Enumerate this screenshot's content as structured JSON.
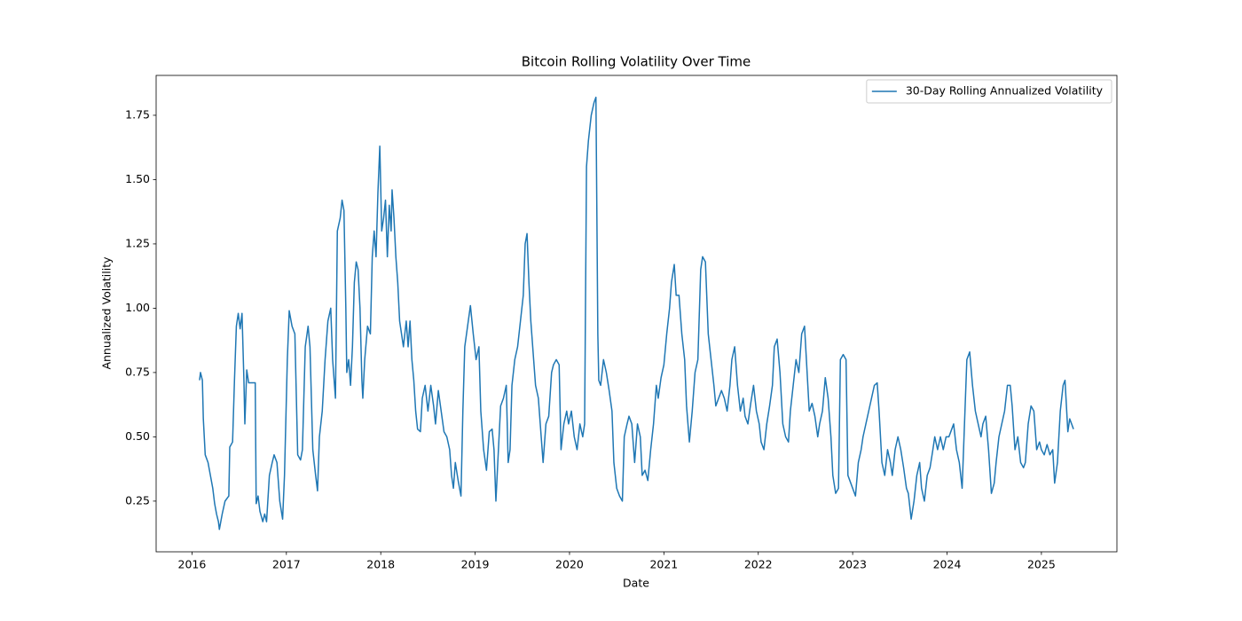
{
  "chart_data": {
    "type": "line",
    "title": "Bitcoin Rolling Volatility Over Time",
    "xlabel": "Date",
    "ylabel": "Annualized Volatility",
    "legend": "upper right",
    "grid": false,
    "xlim": [
      2015.62,
      2025.8
    ],
    "xticks": [
      2016,
      2017,
      2018,
      2019,
      2020,
      2021,
      2022,
      2023,
      2024,
      2025
    ],
    "ylim": [
      0.053,
      1.905
    ],
    "yticks": [
      0.25,
      {
        "value": 0.5,
        "label": "0.50"
      },
      0.75,
      {
        "value": 1,
        "label": "1.00"
      },
      1.25,
      {
        "value": 1.5,
        "label": "1.50"
      },
      1.75
    ],
    "x": [
      2016.08,
      2016.09,
      2016.11,
      2016.12,
      2016.14,
      2016.17,
      2016.19,
      2016.22,
      2016.24,
      2016.26,
      2016.28,
      2016.29,
      2016.32,
      2016.35,
      2016.39,
      2016.4,
      2016.43,
      2016.45,
      2016.47,
      2016.49,
      2016.51,
      2016.53,
      2016.55,
      2016.56,
      2016.58,
      2016.6,
      2016.67,
      2016.68,
      2016.7,
      2016.72,
      2016.75,
      2016.77,
      2016.79,
      2016.82,
      2016.85,
      2016.87,
      2016.9,
      2016.93,
      2016.96,
      2016.98,
      2017.01,
      2017.03,
      2017.06,
      2017.09,
      2017.12,
      2017.15,
      2017.17,
      2017.2,
      2017.23,
      2017.25,
      2017.28,
      2017.31,
      2017.33,
      2017.35,
      2017.38,
      2017.41,
      2017.44,
      2017.47,
      2017.49,
      2017.52,
      2017.54,
      2017.57,
      2017.59,
      2017.61,
      2017.63,
      2017.64,
      2017.66,
      2017.68,
      2017.7,
      2017.72,
      2017.74,
      2017.76,
      2017.78,
      2017.8,
      2017.81,
      2017.83,
      2017.86,
      2017.89,
      2017.91,
      2017.93,
      2017.95,
      2017.97,
      2017.99,
      2018.01,
      2018.03,
      2018.05,
      2018.07,
      2018.09,
      2018.11,
      2018.12,
      2018.14,
      2018.16,
      2018.18,
      2018.2,
      2018.22,
      2018.24,
      2018.27,
      2018.29,
      2018.31,
      2018.33,
      2018.35,
      2018.37,
      2018.39,
      2018.42,
      2018.44,
      2018.47,
      2018.5,
      2018.53,
      2018.56,
      2018.58,
      2018.61,
      2018.64,
      2018.67,
      2018.7,
      2018.73,
      2018.75,
      2018.77,
      2018.79,
      2018.82,
      2018.85,
      2018.87,
      2018.89,
      2018.92,
      2018.95,
      2018.98,
      2019.01,
      2019.04,
      2019.06,
      2019.09,
      2019.12,
      2019.15,
      2019.18,
      2019.2,
      2019.22,
      2019.24,
      2019.27,
      2019.3,
      2019.33,
      2019.35,
      2019.37,
      2019.39,
      2019.42,
      2019.45,
      2019.48,
      2019.51,
      2019.53,
      2019.55,
      2019.57,
      2019.59,
      2019.62,
      2019.64,
      2019.67,
      2019.69,
      2019.72,
      2019.75,
      2019.78,
      2019.81,
      2019.83,
      2019.86,
      2019.89,
      2019.91,
      2019.94,
      2019.97,
      2019.99,
      2020.02,
      2020.05,
      2020.08,
      2020.11,
      2020.14,
      2020.16,
      2020.18,
      2020.2,
      2020.23,
      2020.26,
      2020.28,
      2020.3,
      2020.31,
      2020.33,
      2020.36,
      2020.39,
      2020.42,
      2020.45,
      2020.47,
      2020.5,
      2020.53,
      2020.56,
      2020.58,
      2020.61,
      2020.63,
      2020.66,
      2020.69,
      2020.72,
      2020.75,
      2020.77,
      2020.8,
      2020.83,
      2020.86,
      2020.89,
      2020.92,
      2020.94,
      2020.97,
      2021.0,
      2021.03,
      2021.06,
      2021.08,
      2021.11,
      2021.13,
      2021.16,
      2021.19,
      2021.22,
      2021.24,
      2021.27,
      2021.3,
      2021.33,
      2021.36,
      2021.39,
      2021.41,
      2021.44,
      2021.47,
      2021.5,
      2021.53,
      2021.55,
      2021.58,
      2021.61,
      2021.64,
      2021.67,
      2021.7,
      2021.72,
      2021.75,
      2021.78,
      2021.81,
      2021.84,
      2021.86,
      2021.89,
      2021.92,
      2021.95,
      2021.98,
      2022.01,
      2022.03,
      2022.06,
      2022.09,
      2022.12,
      2022.15,
      2022.17,
      2022.2,
      2022.23,
      2022.26,
      2022.29,
      2022.32,
      2022.34,
      2022.37,
      2022.4,
      2022.43,
      2022.46,
      2022.49,
      2022.51,
      2022.54,
      2022.57,
      2022.6,
      2022.63,
      2022.65,
      2022.68,
      2022.71,
      2022.74,
      2022.77,
      2022.79,
      2022.82,
      2022.85,
      2022.87,
      2022.9,
      2022.93,
      2022.95,
      2022.97,
      2023.0,
      2023.03,
      2023.06,
      2023.09,
      2023.11,
      2023.14,
      2023.17,
      2023.2,
      2023.23,
      2023.26,
      2023.28,
      2023.31,
      2023.34,
      2023.37,
      2023.4,
      2023.42,
      2023.45,
      2023.48,
      2023.51,
      2023.54,
      2023.57,
      2023.59,
      2023.62,
      2023.65,
      2023.68,
      2023.71,
      2023.73,
      2023.76,
      2023.79,
      2023.82,
      2023.85,
      2023.87,
      2023.9,
      2023.93,
      2023.96,
      2023.99,
      2024.02,
      2024.05,
      2024.07,
      2024.1,
      2024.13,
      2024.16,
      2024.19,
      2024.21,
      2024.24,
      2024.27,
      2024.3,
      2024.33,
      2024.36,
      2024.38,
      2024.41,
      2024.44,
      2024.47,
      2024.5,
      2024.52,
      2024.55,
      2024.58,
      2024.61,
      2024.64,
      2024.67,
      2024.69,
      2024.72,
      2024.75,
      2024.78,
      2024.81,
      2024.83,
      2024.86,
      2024.89,
      2024.92,
      2024.95,
      2024.98,
      2025.0,
      2025.03,
      2025.06,
      2025.09,
      2025.12,
      2025.14,
      2025.17,
      2025.2,
      2025.23,
      2025.25,
      2025.28,
      2025.3,
      2025.32,
      2025.34
    ],
    "series": [
      {
        "name": "30-Day Rolling Annualized Volatility",
        "color": "#1f77b4",
        "values": [
          0.72,
          0.75,
          0.72,
          0.57,
          0.43,
          0.4,
          0.36,
          0.3,
          0.24,
          0.2,
          0.17,
          0.14,
          0.2,
          0.25,
          0.27,
          0.46,
          0.48,
          0.72,
          0.93,
          0.98,
          0.92,
          0.98,
          0.72,
          0.55,
          0.76,
          0.71,
          0.71,
          0.24,
          0.27,
          0.21,
          0.17,
          0.2,
          0.17,
          0.35,
          0.4,
          0.43,
          0.4,
          0.25,
          0.18,
          0.35,
          0.8,
          0.99,
          0.93,
          0.9,
          0.43,
          0.41,
          0.45,
          0.85,
          0.93,
          0.85,
          0.45,
          0.35,
          0.29,
          0.5,
          0.6,
          0.8,
          0.95,
          1.0,
          0.8,
          0.65,
          1.3,
          1.35,
          1.42,
          1.38,
          1.0,
          0.75,
          0.8,
          0.7,
          0.85,
          1.1,
          1.18,
          1.15,
          1.0,
          0.72,
          0.65,
          0.8,
          0.93,
          0.9,
          1.2,
          1.3,
          1.2,
          1.45,
          1.63,
          1.3,
          1.35,
          1.42,
          1.2,
          1.4,
          1.3,
          1.46,
          1.35,
          1.2,
          1.1,
          0.95,
          0.9,
          0.85,
          0.95,
          0.85,
          0.95,
          0.8,
          0.72,
          0.6,
          0.53,
          0.52,
          0.65,
          0.7,
          0.6,
          0.7,
          0.62,
          0.55,
          0.68,
          0.6,
          0.52,
          0.5,
          0.45,
          0.35,
          0.3,
          0.4,
          0.33,
          0.27,
          0.6,
          0.85,
          0.93,
          1.01,
          0.9,
          0.8,
          0.85,
          0.6,
          0.45,
          0.37,
          0.52,
          0.53,
          0.45,
          0.25,
          0.4,
          0.62,
          0.65,
          0.7,
          0.4,
          0.45,
          0.7,
          0.8,
          0.85,
          0.95,
          1.05,
          1.25,
          1.29,
          1.1,
          0.95,
          0.8,
          0.7,
          0.65,
          0.55,
          0.4,
          0.55,
          0.58,
          0.75,
          0.78,
          0.8,
          0.78,
          0.45,
          0.55,
          0.6,
          0.55,
          0.6,
          0.5,
          0.45,
          0.55,
          0.5,
          0.55,
          1.55,
          1.65,
          1.75,
          1.8,
          1.82,
          0.9,
          0.72,
          0.7,
          0.8,
          0.75,
          0.68,
          0.6,
          0.4,
          0.3,
          0.27,
          0.25,
          0.5,
          0.55,
          0.58,
          0.55,
          0.4,
          0.55,
          0.5,
          0.35,
          0.37,
          0.33,
          0.45,
          0.55,
          0.7,
          0.65,
          0.73,
          0.78,
          0.9,
          1.0,
          1.1,
          1.17,
          1.05,
          1.05,
          0.9,
          0.8,
          0.62,
          0.48,
          0.6,
          0.75,
          0.8,
          1.15,
          1.2,
          1.18,
          0.9,
          0.8,
          0.7,
          0.62,
          0.65,
          0.68,
          0.65,
          0.6,
          0.7,
          0.8,
          0.85,
          0.7,
          0.6,
          0.65,
          0.58,
          0.55,
          0.63,
          0.7,
          0.6,
          0.55,
          0.48,
          0.45,
          0.55,
          0.62,
          0.7,
          0.85,
          0.88,
          0.75,
          0.55,
          0.5,
          0.48,
          0.6,
          0.7,
          0.8,
          0.75,
          0.9,
          0.93,
          0.8,
          0.6,
          0.63,
          0.58,
          0.5,
          0.55,
          0.6,
          0.73,
          0.65,
          0.5,
          0.35,
          0.28,
          0.3,
          0.8,
          0.82,
          0.8,
          0.35,
          0.33,
          0.3,
          0.27,
          0.4,
          0.45,
          0.5,
          0.55,
          0.6,
          0.65,
          0.7,
          0.71,
          0.6,
          0.4,
          0.35,
          0.45,
          0.4,
          0.35,
          0.45,
          0.5,
          0.45,
          0.38,
          0.3,
          0.28,
          0.18,
          0.25,
          0.35,
          0.4,
          0.3,
          0.25,
          0.35,
          0.38,
          0.45,
          0.5,
          0.45,
          0.5,
          0.45,
          0.5,
          0.5,
          0.53,
          0.55,
          0.45,
          0.4,
          0.3,
          0.6,
          0.8,
          0.83,
          0.7,
          0.6,
          0.55,
          0.5,
          0.55,
          0.58,
          0.45,
          0.28,
          0.32,
          0.4,
          0.5,
          0.55,
          0.6,
          0.7,
          0.7,
          0.62,
          0.45,
          0.5,
          0.4,
          0.38,
          0.4,
          0.55,
          0.62,
          0.6,
          0.45,
          0.48,
          0.45,
          0.43,
          0.47,
          0.43,
          0.45,
          0.32,
          0.4,
          0.6,
          0.7,
          0.72,
          0.52,
          0.57,
          0.55,
          0.53
        ]
      }
    ]
  }
}
